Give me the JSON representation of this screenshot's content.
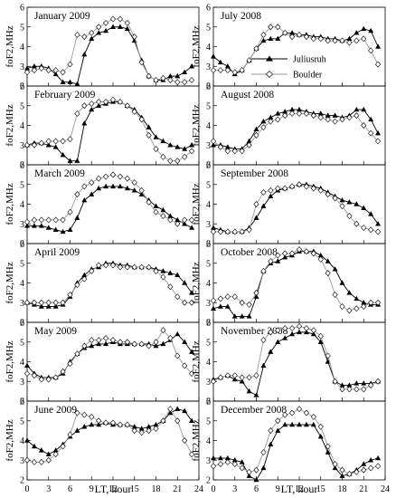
{
  "figure": {
    "xlabel": "LT, hour",
    "ylabel": "foF2,MHz",
    "legend": {
      "juliusruh": "Juliusruh",
      "boulder": "Boulder"
    },
    "xticks": [
      0,
      3,
      6,
      9,
      12,
      15,
      18,
      21,
      24
    ],
    "yticks": [
      2,
      3,
      4,
      5,
      6
    ]
  },
  "chart_data": [
    {
      "type": "line",
      "title": "January 2009",
      "x": [
        0,
        1,
        2,
        3,
        4,
        5,
        6,
        7,
        8,
        9,
        10,
        11,
        12,
        13,
        14,
        15,
        16,
        17,
        18,
        19,
        20,
        21,
        22,
        23
      ],
      "xlim": [
        0,
        24
      ],
      "ylim": [
        2,
        6
      ],
      "grid": false,
      "series": [
        {
          "name": "Juliusruh",
          "marker": "triangle",
          "values": [
            2.9,
            3.0,
            3.0,
            2.9,
            2.6,
            2.2,
            2.2,
            2.1,
            3.6,
            4.4,
            4.7,
            4.8,
            5.0,
            5.0,
            4.9,
            4.3,
            3.3,
            2.5,
            2.3,
            2.3,
            2.5,
            2.5,
            2.7,
            3.0
          ]
        },
        {
          "name": "Boulder",
          "marker": "diamond",
          "values": [
            2.7,
            2.8,
            2.9,
            2.8,
            2.8,
            2.7,
            3.1,
            4.6,
            4.5,
            4.7,
            5.0,
            5.2,
            5.4,
            5.4,
            5.2,
            4.5,
            3.2,
            2.5,
            2.3,
            2.4,
            2.3,
            2.2,
            2.2,
            2.3
          ]
        }
      ]
    },
    {
      "type": "line",
      "title": "July 2008",
      "x": [
        0,
        1,
        2,
        3,
        4,
        5,
        6,
        7,
        8,
        9,
        10,
        11,
        12,
        13,
        14,
        15,
        16,
        17,
        18,
        19,
        20,
        21,
        22,
        23
      ],
      "xlim": [
        0,
        24
      ],
      "ylim": [
        2,
        6
      ],
      "grid": false,
      "series": [
        {
          "name": "Juliusruh",
          "marker": "triangle",
          "values": [
            3.5,
            3.2,
            3.0,
            2.6,
            2.8,
            3.3,
            3.9,
            4.3,
            4.4,
            4.4,
            4.7,
            4.7,
            4.6,
            4.6,
            4.5,
            4.5,
            4.4,
            4.4,
            4.3,
            4.4,
            4.7,
            4.9,
            4.8,
            4.0
          ]
        },
        {
          "name": "Boulder",
          "marker": "diamond",
          "values": [
            2.8,
            2.8,
            2.8,
            2.7,
            2.8,
            3.3,
            3.9,
            4.6,
            5.0,
            5.0,
            4.7,
            4.5,
            4.6,
            4.5,
            4.4,
            4.4,
            4.3,
            4.3,
            4.3,
            4.2,
            4.3,
            4.4,
            3.8,
            3.1
          ]
        }
      ]
    },
    {
      "type": "line",
      "title": "February 2009",
      "x": [
        0,
        1,
        2,
        3,
        4,
        5,
        6,
        7,
        8,
        9,
        10,
        11,
        12,
        13,
        14,
        15,
        16,
        17,
        18,
        19,
        20,
        21,
        22,
        23
      ],
      "xlim": [
        0,
        24
      ],
      "ylim": [
        2,
        6
      ],
      "grid": false,
      "series": [
        {
          "name": "Juliusruh",
          "marker": "triangle",
          "values": [
            3.0,
            3.1,
            3.1,
            3.0,
            2.9,
            2.5,
            2.2,
            2.2,
            4.1,
            4.8,
            5.0,
            5.1,
            5.2,
            5.2,
            5.0,
            4.8,
            4.4,
            3.9,
            3.4,
            3.2,
            3.0,
            2.9,
            2.8,
            3.0
          ]
        },
        {
          "name": "Boulder",
          "marker": "diamond",
          "values": [
            3.0,
            3.0,
            3.1,
            3.2,
            3.2,
            3.2,
            3.3,
            4.6,
            5.0,
            5.1,
            5.2,
            5.2,
            5.3,
            5.2,
            5.0,
            4.7,
            4.3,
            3.5,
            2.8,
            2.4,
            2.2,
            2.2,
            2.4,
            2.7
          ]
        }
      ]
    },
    {
      "type": "line",
      "title": "August 2008",
      "x": [
        0,
        1,
        2,
        3,
        4,
        5,
        6,
        7,
        8,
        9,
        10,
        11,
        12,
        13,
        14,
        15,
        16,
        17,
        18,
        19,
        20,
        21,
        22,
        23
      ],
      "xlim": [
        0,
        24
      ],
      "ylim": [
        2,
        6
      ],
      "grid": false,
      "series": [
        {
          "name": "Juliusruh",
          "marker": "triangle",
          "values": [
            3.0,
            3.0,
            2.9,
            2.8,
            2.8,
            3.2,
            3.8,
            4.2,
            4.4,
            4.6,
            4.7,
            4.8,
            4.8,
            4.7,
            4.6,
            4.6,
            4.5,
            4.5,
            4.4,
            4.5,
            4.8,
            4.8,
            4.3,
            3.6
          ]
        },
        {
          "name": "Boulder",
          "marker": "diamond",
          "values": [
            3.2,
            2.9,
            2.7,
            2.7,
            2.7,
            3.0,
            3.5,
            3.9,
            4.2,
            4.3,
            4.5,
            4.6,
            4.6,
            4.6,
            4.5,
            4.4,
            4.3,
            4.2,
            4.3,
            4.4,
            4.5,
            4.0,
            3.6,
            3.2
          ]
        }
      ]
    },
    {
      "type": "line",
      "title": "March 2009",
      "x": [
        0,
        1,
        2,
        3,
        4,
        5,
        6,
        7,
        8,
        9,
        10,
        11,
        12,
        13,
        14,
        15,
        16,
        17,
        18,
        19,
        20,
        21,
        22,
        23
      ],
      "xlim": [
        0,
        24
      ],
      "ylim": [
        2,
        6
      ],
      "grid": false,
      "series": [
        {
          "name": "Juliusruh",
          "marker": "triangle",
          "values": [
            2.9,
            2.9,
            2.9,
            2.8,
            2.7,
            2.6,
            2.7,
            3.3,
            4.2,
            4.5,
            4.8,
            4.9,
            4.9,
            4.9,
            4.8,
            4.7,
            4.5,
            4.2,
            3.9,
            3.7,
            3.4,
            3.2,
            3.0,
            2.8
          ]
        },
        {
          "name": "Boulder",
          "marker": "diamond",
          "values": [
            3.1,
            3.2,
            3.2,
            3.2,
            3.2,
            3.2,
            3.6,
            4.5,
            4.9,
            5.1,
            5.3,
            5.4,
            5.5,
            5.4,
            5.3,
            5.1,
            4.7,
            4.1,
            3.6,
            3.4,
            3.2,
            3.0,
            3.2,
            3.2
          ]
        }
      ]
    },
    {
      "type": "line",
      "title": "September 2008",
      "x": [
        0,
        1,
        2,
        3,
        4,
        5,
        6,
        7,
        8,
        9,
        10,
        11,
        12,
        13,
        14,
        15,
        16,
        17,
        18,
        19,
        20,
        21,
        22,
        23
      ],
      "xlim": [
        0,
        24
      ],
      "ylim": [
        2,
        6
      ],
      "grid": false,
      "series": [
        {
          "name": "Juliusruh",
          "marker": "triangle",
          "values": [
            2.8,
            2.7,
            2.6,
            2.6,
            2.6,
            2.8,
            3.3,
            3.9,
            4.4,
            4.7,
            4.8,
            4.9,
            5.0,
            5.0,
            4.9,
            4.8,
            4.6,
            4.4,
            4.2,
            4.1,
            4.0,
            3.8,
            3.5,
            3.0
          ]
        },
        {
          "name": "Boulder",
          "marker": "diamond",
          "values": [
            2.6,
            2.6,
            2.6,
            2.6,
            2.6,
            2.7,
            4.0,
            4.6,
            4.7,
            4.8,
            4.8,
            4.9,
            5.0,
            4.9,
            4.8,
            4.7,
            4.5,
            4.3,
            3.9,
            3.4,
            3.0,
            2.8,
            2.7,
            2.6
          ]
        }
      ]
    },
    {
      "type": "line",
      "title": "April 2009",
      "x": [
        0,
        1,
        2,
        3,
        4,
        5,
        6,
        7,
        8,
        9,
        10,
        11,
        12,
        13,
        14,
        15,
        16,
        17,
        18,
        19,
        20,
        21,
        22,
        23
      ],
      "xlim": [
        0,
        24
      ],
      "ylim": [
        2,
        6
      ],
      "grid": false,
      "series": [
        {
          "name": "Juliusruh",
          "marker": "triangle",
          "values": [
            3.0,
            2.9,
            2.8,
            2.8,
            2.8,
            2.9,
            3.3,
            4.0,
            4.4,
            4.7,
            4.8,
            5.0,
            5.0,
            4.9,
            4.9,
            4.8,
            4.8,
            4.8,
            4.7,
            4.6,
            4.5,
            4.4,
            4.0,
            3.5
          ]
        },
        {
          "name": "Boulder",
          "marker": "diamond",
          "values": [
            3.0,
            3.0,
            3.0,
            3.0,
            3.0,
            3.0,
            3.4,
            3.9,
            4.2,
            4.6,
            4.9,
            4.9,
            4.9,
            4.8,
            4.8,
            4.8,
            4.8,
            4.8,
            4.6,
            4.3,
            3.8,
            3.3,
            3.0,
            3.0
          ]
        }
      ]
    },
    {
      "type": "line",
      "title": "October 2008",
      "x": [
        0,
        1,
        2,
        3,
        4,
        5,
        6,
        7,
        8,
        9,
        10,
        11,
        12,
        13,
        14,
        15,
        16,
        17,
        18,
        19,
        20,
        21,
        22,
        23
      ],
      "xlim": [
        0,
        24
      ],
      "ylim": [
        2,
        6
      ],
      "grid": false,
      "series": [
        {
          "name": "Juliusruh",
          "marker": "triangle",
          "values": [
            2.7,
            2.8,
            2.8,
            2.3,
            2.3,
            2.3,
            3.3,
            4.6,
            5.0,
            5.1,
            5.3,
            5.4,
            5.6,
            5.6,
            5.6,
            5.4,
            5.1,
            4.7,
            4.0,
            3.5,
            3.2,
            3.0,
            2.9,
            2.9
          ]
        },
        {
          "name": "Boulder",
          "marker": "diamond",
          "values": [
            3.1,
            3.2,
            3.3,
            3.3,
            3.0,
            2.9,
            3.5,
            4.6,
            5.1,
            5.4,
            5.5,
            5.5,
            5.7,
            5.6,
            5.5,
            5.2,
            4.5,
            3.4,
            2.8,
            2.6,
            2.7,
            2.8,
            3.0,
            3.0
          ]
        }
      ]
    },
    {
      "type": "line",
      "title": "May 2009",
      "x": [
        0,
        1,
        2,
        3,
        4,
        5,
        6,
        7,
        8,
        9,
        10,
        11,
        12,
        13,
        14,
        15,
        16,
        17,
        18,
        19,
        20,
        21,
        22,
        23
      ],
      "xlim": [
        0,
        24
      ],
      "ylim": [
        2,
        6
      ],
      "grid": false,
      "series": [
        {
          "name": "Juliusruh",
          "marker": "triangle",
          "values": [
            3.8,
            3.4,
            3.2,
            3.2,
            3.2,
            3.4,
            4.0,
            4.4,
            4.7,
            4.8,
            4.9,
            4.9,
            5.0,
            4.9,
            4.9,
            4.9,
            4.9,
            4.9,
            4.8,
            4.9,
            5.1,
            5.4,
            5.0,
            4.5
          ]
        },
        {
          "name": "Boulder",
          "marker": "diamond",
          "values": [
            3.4,
            3.3,
            3.1,
            3.1,
            3.2,
            3.5,
            3.9,
            4.4,
            4.8,
            5.1,
            5.1,
            5.2,
            5.1,
            5.0,
            5.0,
            4.9,
            4.9,
            4.8,
            5.0,
            5.6,
            5.2,
            4.3,
            3.8,
            3.4
          ]
        }
      ]
    },
    {
      "type": "line",
      "title": "November 2008",
      "x": [
        0,
        1,
        2,
        3,
        4,
        5,
        6,
        7,
        8,
        9,
        10,
        11,
        12,
        13,
        14,
        15,
        16,
        17,
        18,
        19,
        20,
        21,
        22,
        23
      ],
      "xlim": [
        0,
        24
      ],
      "ylim": [
        2,
        6
      ],
      "grid": false,
      "series": [
        {
          "name": "Juliusruh",
          "marker": "triangle",
          "values": [
            3.1,
            3.2,
            3.3,
            3.1,
            3.0,
            2.5,
            2.3,
            3.8,
            4.5,
            5.0,
            5.2,
            5.4,
            5.5,
            5.5,
            5.4,
            5.0,
            4.0,
            3.0,
            2.8,
            2.8,
            2.9,
            2.9,
            2.9,
            3.0
          ]
        },
        {
          "name": "Boulder",
          "marker": "diamond",
          "values": [
            3.0,
            3.2,
            3.3,
            3.3,
            3.2,
            3.2,
            3.3,
            5.1,
            5.5,
            5.6,
            5.7,
            5.7,
            5.8,
            5.7,
            5.6,
            5.3,
            4.3,
            3.0,
            2.6,
            2.6,
            2.6,
            2.6,
            2.8,
            3.0
          ]
        }
      ]
    },
    {
      "type": "line",
      "title": "June 2009",
      "x": [
        0,
        1,
        2,
        3,
        4,
        5,
        6,
        7,
        8,
        9,
        10,
        11,
        12,
        13,
        14,
        15,
        16,
        17,
        18,
        19,
        20,
        21,
        22,
        23
      ],
      "xlim": [
        0,
        24
      ],
      "ylim": [
        2,
        6
      ],
      "grid": false,
      "series": [
        {
          "name": "Juliusruh",
          "marker": "triangle",
          "values": [
            4.0,
            3.7,
            3.5,
            3.3,
            3.5,
            3.8,
            4.2,
            4.5,
            4.7,
            4.8,
            4.8,
            4.9,
            4.8,
            4.8,
            4.8,
            4.7,
            4.6,
            4.7,
            4.8,
            5.0,
            5.4,
            5.6,
            5.5,
            5.0
          ]
        },
        {
          "name": "Boulder",
          "marker": "diamond",
          "values": [
            3.0,
            2.9,
            2.9,
            3.0,
            3.3,
            3.7,
            4.3,
            5.4,
            5.3,
            5.2,
            5.0,
            4.9,
            4.9,
            4.8,
            4.8,
            4.5,
            4.4,
            4.5,
            4.6,
            5.0,
            5.6,
            5.0,
            4.0,
            3.3
          ]
        }
      ]
    },
    {
      "type": "line",
      "title": "December 2008",
      "x": [
        0,
        1,
        2,
        3,
        4,
        5,
        6,
        7,
        8,
        9,
        10,
        11,
        12,
        13,
        14,
        15,
        16,
        17,
        18,
        19,
        20,
        21,
        22,
        23
      ],
      "xlim": [
        0,
        24
      ],
      "ylim": [
        2,
        6
      ],
      "grid": false,
      "series": [
        {
          "name": "Juliusruh",
          "marker": "triangle",
          "values": [
            3.1,
            3.1,
            3.1,
            3.0,
            2.9,
            2.2,
            2.0,
            2.6,
            3.8,
            4.5,
            4.8,
            4.8,
            4.8,
            4.8,
            4.8,
            4.2,
            3.4,
            2.6,
            2.2,
            2.3,
            2.5,
            2.8,
            3.0,
            3.1
          ]
        },
        {
          "name": "Boulder",
          "marker": "diamond",
          "values": [
            2.7,
            2.8,
            2.9,
            2.8,
            2.6,
            2.4,
            2.5,
            3.4,
            4.5,
            5.0,
            5.3,
            5.4,
            5.6,
            5.4,
            5.2,
            4.7,
            3.7,
            2.8,
            2.5,
            2.3,
            2.4,
            2.5,
            2.6,
            2.7
          ]
        }
      ]
    }
  ]
}
